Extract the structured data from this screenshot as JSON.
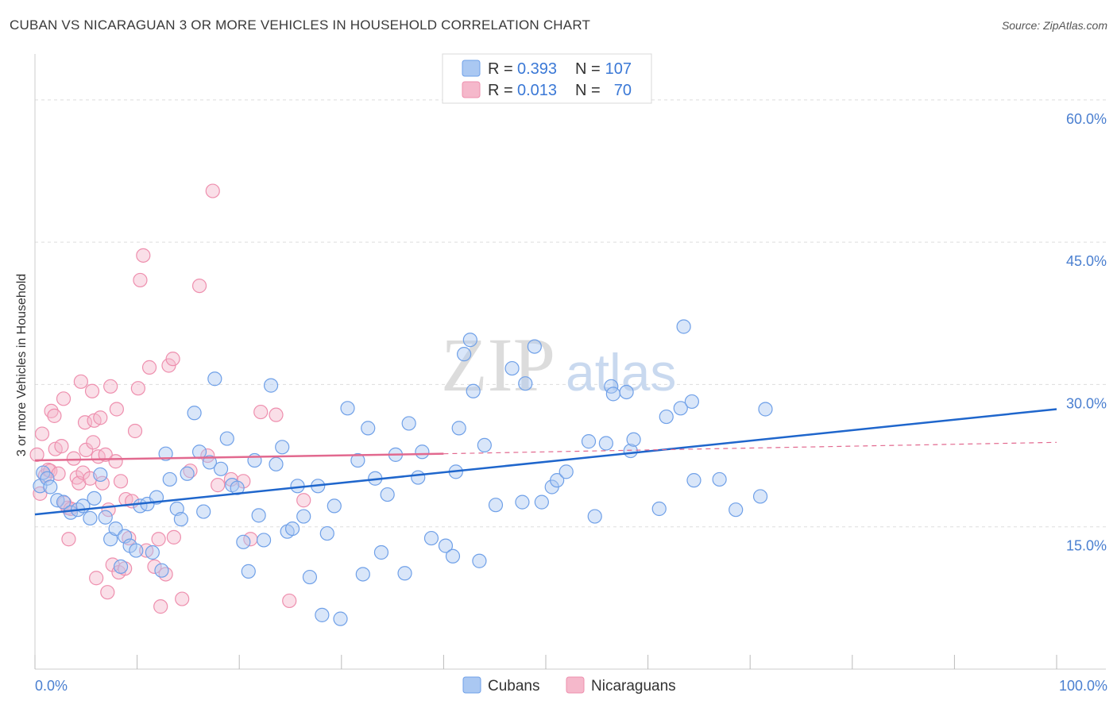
{
  "title": "CUBAN VS NICARAGUAN 3 OR MORE VEHICLES IN HOUSEHOLD CORRELATION CHART",
  "source": "Source: ZipAtlas.com",
  "watermark": {
    "zip": "ZIP",
    "atlas": "atlas"
  },
  "colors": {
    "cubans": "#6fa0e8",
    "cubans_fill": "#aac8f2",
    "cubans_line": "#1f66cc",
    "nicaraguans": "#ee8fae",
    "nicaraguans_fill": "#f5b8cb",
    "nicaraguans_line": "#e2698f",
    "grid": "#dddddd",
    "axis_label": "#4a7fd0"
  },
  "legend": {
    "r_label": "R =",
    "n_label": "N =",
    "cubans": {
      "r": "0.393",
      "n": "107"
    },
    "nicaraguans": {
      "r": "0.013",
      "n": "70"
    }
  },
  "chart_data": {
    "type": "scatter",
    "title": "CUBAN VS NICARAGUAN 3 OR MORE VEHICLES IN HOUSEHOLD CORRELATION CHART",
    "xlabel": "",
    "ylabel": "3 or more Vehicles in Household",
    "xlim": [
      0,
      100
    ],
    "ylim": [
      0,
      64
    ],
    "x_tick_labels": [
      "0.0%",
      "100.0%"
    ],
    "y_ticks": [
      15,
      30,
      45,
      60
    ],
    "y_tick_labels": [
      "15.0%",
      "30.0%",
      "45.0%",
      "60.0%"
    ],
    "grid": true,
    "legend_position": "top-center",
    "series": [
      {
        "name": "Cubans",
        "trend": {
          "x0": 0,
          "y0": 16.3,
          "x1": 100,
          "y1": 27.4
        },
        "points": [
          [
            0.5,
            19.3
          ],
          [
            0.8,
            20.7
          ],
          [
            1.2,
            20.1
          ],
          [
            1.5,
            19.2
          ],
          [
            2.2,
            17.8
          ],
          [
            2.8,
            17.6
          ],
          [
            3.5,
            16.5
          ],
          [
            4.2,
            16.8
          ],
          [
            4.7,
            17.2
          ],
          [
            5.4,
            15.9
          ],
          [
            5.8,
            18.0
          ],
          [
            6.4,
            20.5
          ],
          [
            6.9,
            16.0
          ],
          [
            7.4,
            13.7
          ],
          [
            7.9,
            14.8
          ],
          [
            8.4,
            10.8
          ],
          [
            8.8,
            14.0
          ],
          [
            9.3,
            13.0
          ],
          [
            9.9,
            12.5
          ],
          [
            10.3,
            17.2
          ],
          [
            11.0,
            17.4
          ],
          [
            11.5,
            12.3
          ],
          [
            11.9,
            18.1
          ],
          [
            12.4,
            10.4
          ],
          [
            12.8,
            22.7
          ],
          [
            13.2,
            20.0
          ],
          [
            13.9,
            16.9
          ],
          [
            14.3,
            15.8
          ],
          [
            14.9,
            20.6
          ],
          [
            15.6,
            27.0
          ],
          [
            16.1,
            22.9
          ],
          [
            16.5,
            16.6
          ],
          [
            17.1,
            21.8
          ],
          [
            17.6,
            30.6
          ],
          [
            18.2,
            21.1
          ],
          [
            18.8,
            24.3
          ],
          [
            19.3,
            19.4
          ],
          [
            19.8,
            19.1
          ],
          [
            20.4,
            13.4
          ],
          [
            20.9,
            10.3
          ],
          [
            21.5,
            22.0
          ],
          [
            21.9,
            16.2
          ],
          [
            22.4,
            13.6
          ],
          [
            23.1,
            29.9
          ],
          [
            23.6,
            21.6
          ],
          [
            24.2,
            23.4
          ],
          [
            24.7,
            14.5
          ],
          [
            25.2,
            14.8
          ],
          [
            25.7,
            19.3
          ],
          [
            26.3,
            16.1
          ],
          [
            26.9,
            9.7
          ],
          [
            27.7,
            19.3
          ],
          [
            28.1,
            5.7
          ],
          [
            28.6,
            14.3
          ],
          [
            29.3,
            17.2
          ],
          [
            29.9,
            5.3
          ],
          [
            30.6,
            27.5
          ],
          [
            31.6,
            22.0
          ],
          [
            32.1,
            10.0
          ],
          [
            32.6,
            25.4
          ],
          [
            33.3,
            20.1
          ],
          [
            33.9,
            12.3
          ],
          [
            34.5,
            18.4
          ],
          [
            35.3,
            22.6
          ],
          [
            36.2,
            10.1
          ],
          [
            36.6,
            25.9
          ],
          [
            37.5,
            20.2
          ],
          [
            37.9,
            22.9
          ],
          [
            38.8,
            13.8
          ],
          [
            40.2,
            13.0
          ],
          [
            40.9,
            11.9
          ],
          [
            41.2,
            20.8
          ],
          [
            41.5,
            25.4
          ],
          [
            42.0,
            33.2
          ],
          [
            42.6,
            34.7
          ],
          [
            42.9,
            29.3
          ],
          [
            43.5,
            11.4
          ],
          [
            44.0,
            23.6
          ],
          [
            45.1,
            17.3
          ],
          [
            46.7,
            31.7
          ],
          [
            47.7,
            17.6
          ],
          [
            48.0,
            30.1
          ],
          [
            48.9,
            34.0
          ],
          [
            49.6,
            17.6
          ],
          [
            50.6,
            19.2
          ],
          [
            51.1,
            19.9
          ],
          [
            52.0,
            20.8
          ],
          [
            54.2,
            24.0
          ],
          [
            54.8,
            16.1
          ],
          [
            55.9,
            23.8
          ],
          [
            56.4,
            29.8
          ],
          [
            56.6,
            29.0
          ],
          [
            57.9,
            29.2
          ],
          [
            58.3,
            23.0
          ],
          [
            58.6,
            24.2
          ],
          [
            61.1,
            16.9
          ],
          [
            61.8,
            26.6
          ],
          [
            63.2,
            27.5
          ],
          [
            63.5,
            36.1
          ],
          [
            64.3,
            28.2
          ],
          [
            64.5,
            19.9
          ],
          [
            67.0,
            20.0
          ],
          [
            68.6,
            16.8
          ],
          [
            71.0,
            18.2
          ],
          [
            71.5,
            27.4
          ]
        ]
      },
      {
        "name": "Nicaraguans",
        "trend": {
          "x0": 0,
          "y0": 22.0,
          "x1": 40,
          "y1": 22.7,
          "dashed_to_x": 100,
          "dashed_to_y": 23.9
        },
        "points": [
          [
            0.2,
            22.6
          ],
          [
            0.5,
            18.5
          ],
          [
            0.7,
            24.8
          ],
          [
            1.0,
            20.4
          ],
          [
            1.3,
            21.0
          ],
          [
            1.5,
            20.9
          ],
          [
            1.6,
            27.2
          ],
          [
            1.9,
            26.7
          ],
          [
            2.0,
            23.2
          ],
          [
            2.3,
            20.6
          ],
          [
            2.6,
            23.5
          ],
          [
            2.8,
            28.5
          ],
          [
            2.9,
            17.5
          ],
          [
            3.2,
            17.0
          ],
          [
            3.3,
            13.7
          ],
          [
            3.5,
            16.9
          ],
          [
            3.8,
            22.2
          ],
          [
            4.1,
            20.2
          ],
          [
            4.3,
            19.6
          ],
          [
            4.5,
            30.3
          ],
          [
            4.7,
            20.7
          ],
          [
            4.9,
            26.0
          ],
          [
            5.0,
            23.1
          ],
          [
            5.4,
            20.1
          ],
          [
            5.6,
            29.3
          ],
          [
            5.7,
            23.9
          ],
          [
            5.8,
            26.2
          ],
          [
            6.0,
            9.6
          ],
          [
            6.2,
            22.4
          ],
          [
            6.4,
            26.5
          ],
          [
            6.6,
            19.6
          ],
          [
            6.9,
            22.6
          ],
          [
            7.1,
            8.1
          ],
          [
            7.2,
            16.8
          ],
          [
            7.4,
            29.8
          ],
          [
            7.6,
            11.0
          ],
          [
            7.9,
            21.9
          ],
          [
            8.0,
            27.4
          ],
          [
            8.2,
            10.2
          ],
          [
            8.4,
            19.8
          ],
          [
            8.8,
            10.6
          ],
          [
            8.9,
            17.9
          ],
          [
            9.2,
            13.8
          ],
          [
            9.5,
            17.7
          ],
          [
            9.8,
            25.1
          ],
          [
            10.1,
            29.6
          ],
          [
            10.3,
            41.0
          ],
          [
            10.6,
            43.6
          ],
          [
            10.9,
            12.5
          ],
          [
            11.2,
            31.8
          ],
          [
            11.7,
            10.8
          ],
          [
            12.1,
            13.7
          ],
          [
            12.3,
            6.6
          ],
          [
            12.8,
            10.0
          ],
          [
            13.1,
            32.0
          ],
          [
            13.5,
            32.7
          ],
          [
            13.6,
            13.9
          ],
          [
            14.4,
            7.4
          ],
          [
            15.2,
            20.9
          ],
          [
            16.1,
            40.4
          ],
          [
            16.9,
            22.5
          ],
          [
            17.4,
            50.4
          ],
          [
            17.9,
            19.4
          ],
          [
            19.2,
            20.0
          ],
          [
            20.4,
            19.8
          ],
          [
            21.1,
            13.7
          ],
          [
            22.1,
            27.1
          ],
          [
            23.6,
            26.8
          ],
          [
            24.9,
            7.2
          ],
          [
            26.3,
            17.8
          ]
        ]
      }
    ]
  }
}
